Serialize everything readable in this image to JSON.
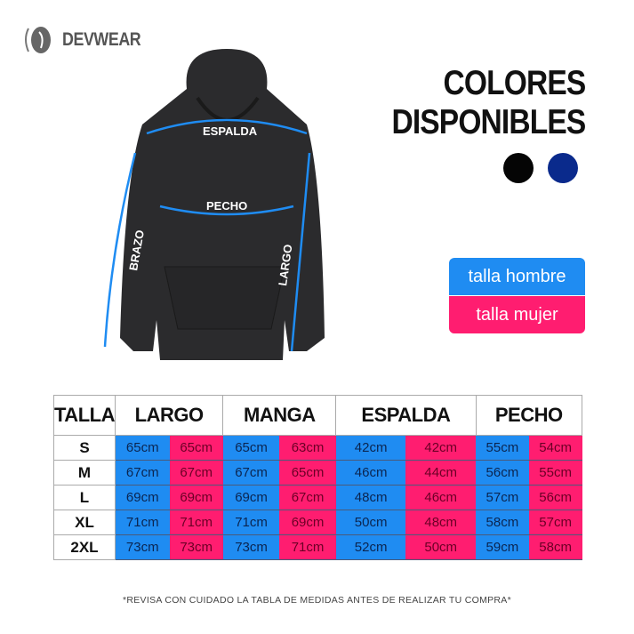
{
  "brand": {
    "name": "DEVWEAR"
  },
  "title": {
    "line1": "COLORES",
    "line2": "DISPONIBLES"
  },
  "colors": [
    {
      "name": "black",
      "hex": "#050505"
    },
    {
      "name": "navy",
      "hex": "#0a2a8c"
    }
  ],
  "legend": {
    "men": "talla hombre",
    "women": "talla mujer",
    "men_color": "#1f8cf2",
    "women_color": "#ff1d70"
  },
  "diagram": {
    "espalda": "ESPALDA",
    "pecho": "PECHO",
    "brazo": "BRAZO",
    "largo": "LARGO"
  },
  "table": {
    "headers": [
      "TALLA",
      "LARGO",
      "MANGA",
      "ESPALDA",
      "PECHO"
    ],
    "rows": [
      {
        "size": "S",
        "values": [
          "65cm",
          "65cm",
          "65cm",
          "63cm",
          "42cm",
          "42cm",
          "55cm",
          "54cm"
        ]
      },
      {
        "size": "M",
        "values": [
          "67cm",
          "67cm",
          "67cm",
          "65cm",
          "46cm",
          "44cm",
          "56cm",
          "55cm"
        ]
      },
      {
        "size": "L",
        "values": [
          "69cm",
          "69cm",
          "69cm",
          "67cm",
          "48cm",
          "46cm",
          "57cm",
          "56cm"
        ]
      },
      {
        "size": "XL",
        "values": [
          "71cm",
          "71cm",
          "71cm",
          "69cm",
          "50cm",
          "48cm",
          "58cm",
          "57cm"
        ]
      },
      {
        "size": "2XL",
        "values": [
          "73cm",
          "73cm",
          "73cm",
          "71cm",
          "52cm",
          "50cm",
          "59cm",
          "58cm"
        ]
      }
    ]
  },
  "note": "*REVISA CON CUIDADO LA TABLA DE MEDIDAS ANTES DE REALIZAR TU COMPRA*"
}
